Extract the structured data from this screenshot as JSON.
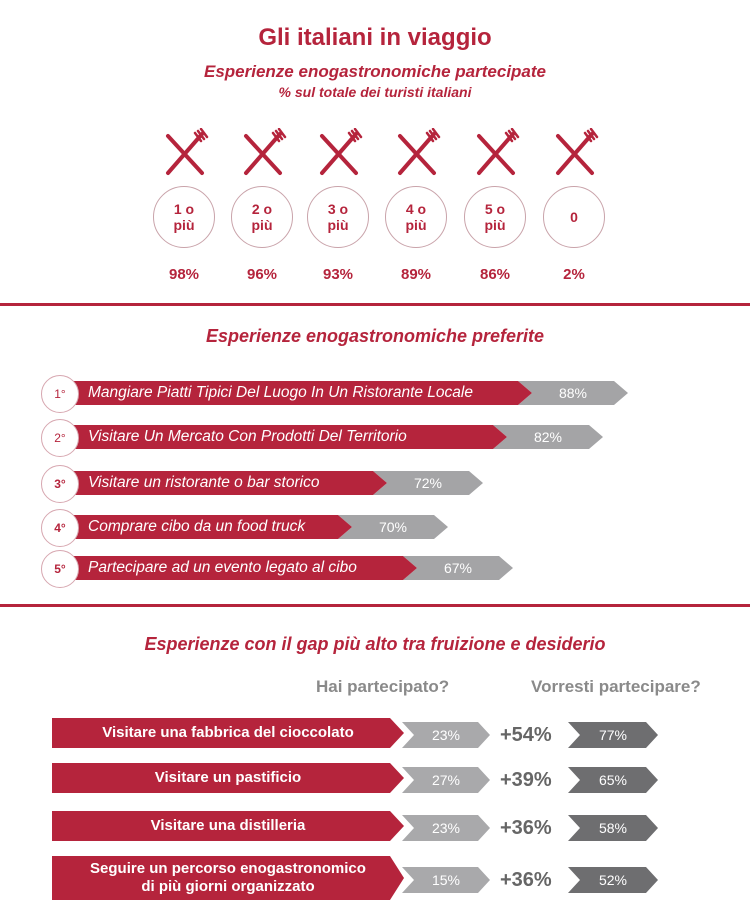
{
  "title": "Gli italiani in viaggio",
  "subtitle": "Esperienze enogastronomiche partecipate",
  "subnote": "% sul totale dei turisti italiani",
  "experiences": [
    {
      "label": "1 o\npiù",
      "value": "98%"
    },
    {
      "label": "2 o\npiù",
      "value": "96%"
    },
    {
      "label": "3 o\npiù",
      "value": "93%"
    },
    {
      "label": "4 o\npiù",
      "value": "89%"
    },
    {
      "label": "5 o\npiù",
      "value": "86%"
    },
    {
      "label": "0",
      "value": "2%"
    }
  ],
  "preferred": {
    "title": "Esperienze enogastronomiche preferite",
    "items": [
      {
        "rank": "1°",
        "label": "Mangiare Piatti Tipici Del Luogo In Un Ristorante Locale",
        "value": "88%"
      },
      {
        "rank": "2°",
        "label": "Visitare Un Mercato Con Prodotti Del Territorio",
        "value": "82%"
      },
      {
        "rank": "3°",
        "label": "Visitare un ristorante o bar storico",
        "value": "72%"
      },
      {
        "rank": "4°",
        "label": "Comprare cibo da un food truck",
        "value": "70%"
      },
      {
        "rank": "5°",
        "label": "Partecipare ad un evento legato al cibo",
        "value": "67%"
      }
    ]
  },
  "gap": {
    "title": "Esperienze con il gap più alto tra fruizione e desiderio",
    "col_participated": "Hai partecipato?",
    "col_wish": "Vorresti partecipare?",
    "items": [
      {
        "label": "Visitare una fabbrica del cioccolato",
        "participated": "23%",
        "delta": "+54%",
        "wish": "77%"
      },
      {
        "label": "Visitare un pastificio",
        "participated": "27%",
        "delta": "+39%",
        "wish": "65%"
      },
      {
        "label": "Visitare una distilleria",
        "participated": "23%",
        "delta": "+36%",
        "wish": "58%"
      },
      {
        "label": "Seguire un percorso enogastronomico\ndi  più giorni organizzato",
        "participated": "15%",
        "delta": "+36%",
        "wish": "52%"
      }
    ]
  },
  "chart_data": [
    {
      "type": "table",
      "title": "Esperienze enogastronomiche partecipate",
      "subtitle": "% sul totale dei turisti italiani",
      "categories": [
        "1 o più",
        "2 o più",
        "3 o più",
        "4 o più",
        "5 o più",
        "0"
      ],
      "values": [
        98,
        96,
        93,
        89,
        86,
        2
      ]
    },
    {
      "type": "bar",
      "title": "Esperienze enogastronomiche preferite",
      "categories": [
        "Mangiare Piatti Tipici Del Luogo In Un Ristorante Locale",
        "Visitare Un Mercato Con Prodotti Del Territorio",
        "Visitare un ristorante o bar storico",
        "Comprare cibo da un food truck",
        "Partecipare ad un evento legato al cibo"
      ],
      "values": [
        88,
        82,
        72,
        70,
        67
      ]
    },
    {
      "type": "bar",
      "title": "Esperienze con il gap più alto tra fruizione e desiderio",
      "categories": [
        "Visitare una fabbrica del cioccolato",
        "Visitare un pastificio",
        "Visitare una distilleria",
        "Seguire un percorso enogastronomico di più giorni organizzato"
      ],
      "series": [
        {
          "name": "Hai partecipato?",
          "values": [
            23,
            27,
            23,
            15
          ]
        },
        {
          "name": "Vorresti partecipare?",
          "values": [
            77,
            65,
            58,
            52
          ]
        }
      ],
      "gap": [
        54,
        39,
        36,
        36
      ]
    }
  ],
  "colors": {
    "accent": "#b5243c",
    "grey": "#a4a4a6",
    "dark_grey": "#6e6e70"
  },
  "icons": {
    "cutlery": "fork-knife-icon"
  }
}
